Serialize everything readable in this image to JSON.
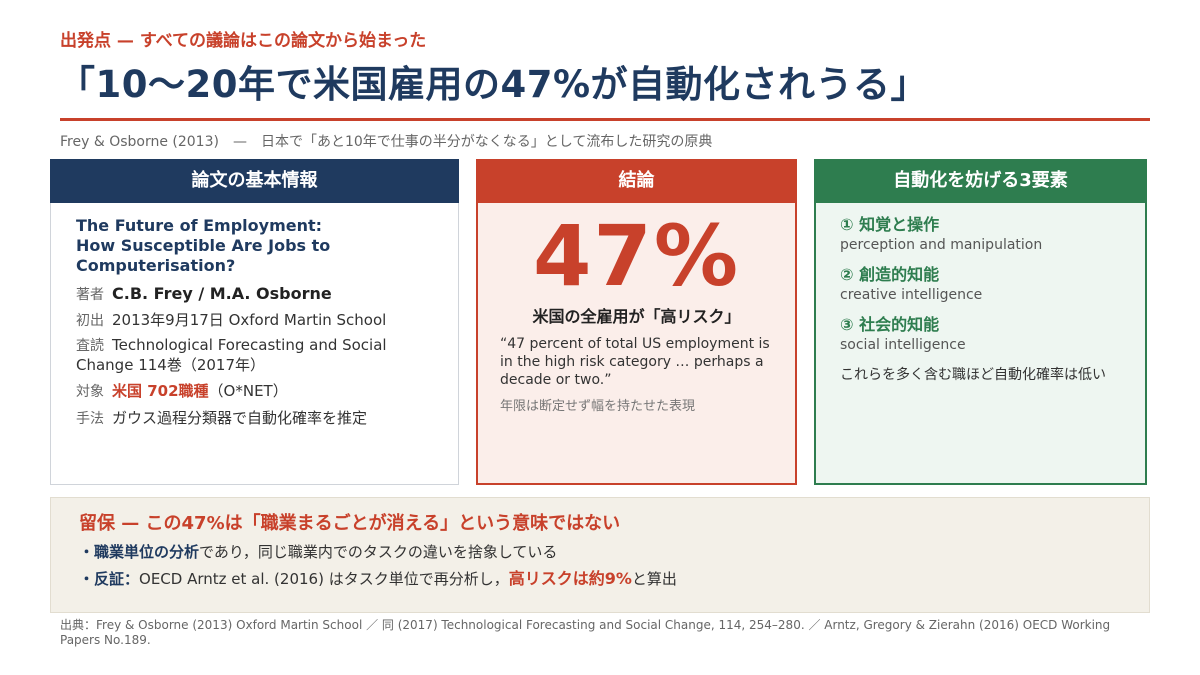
{
  "header": {
    "kicker": "出発点 — すべての議論はこの論文から始まった",
    "title": "「10〜20年で米国雇用の47%が自動化されうる」",
    "subtitle": "Frey & Osborne (2013)　—　日本で「あと10年で仕事の半分がなくなる」として流布した研究の原典"
  },
  "basic_info": {
    "heading": "論文の基本情報",
    "paper_title_1": "The Future of Employment:",
    "paper_title_2": "How Susceptible Are Jobs to",
    "paper_title_3": "Computerisation?",
    "author_label": "著者",
    "author_value": "C.B. Frey / M.A. Osborne",
    "first_label": "初出",
    "first_value": "2013年9月17日 Oxford Martin School",
    "review_label": "査読",
    "review_value_1": "Technological Forecasting and Social",
    "review_value_2": "Change 114巻（2017年）",
    "target_label": "対象",
    "target_value": "米国 702職種",
    "target_suffix": "（O*NET）",
    "method_label": "手法",
    "method_value": "ガウス過程分類器で自動化確率を推定"
  },
  "conclusion": {
    "heading": "結論",
    "big_value": "47%",
    "statement": "米国の全雇用が「高リスク」",
    "quote": "“47 percent of total US employment is in the high risk category … perhaps a decade or two.”",
    "note": "年限は断定せず幅を持たせた表現"
  },
  "factors": {
    "heading": "自動化を妨げる3要素",
    "items": [
      {
        "jp": "① 知覚と操作",
        "en": "perception and manipulation"
      },
      {
        "jp": "② 創造的知能",
        "en": "creative intelligence"
      },
      {
        "jp": "③ 社会的知能",
        "en": "social intelligence"
      }
    ],
    "summary": "これらを多く含む職ほど自動化確率は低い"
  },
  "caveat": {
    "title": "留保 — この47%は「職業まるごとが消える」という意味ではない",
    "line1_bold": "・職業単位の分析",
    "line1_rest": "であり，同じ職業内でのタスクの違いを捨象している",
    "line2_bold": "・反証：",
    "line2_rest": "OECD Arntz et al. (2016) はタスク単位で再分析し，",
    "line2_hl": "高リスクは約9%",
    "line2_end": "と算出"
  },
  "source": "出典：Frey & Osborne (2013) Oxford Martin School ／ 同 (2017) Technological Forecasting and Social Change, 114, 254–280. ／ Arntz, Gregory & Zierahn (2016) OECD Working Papers No.189.",
  "colors": {
    "navy": "#1f3a5f",
    "red": "#c8412b",
    "green": "#2e7d4f"
  }
}
